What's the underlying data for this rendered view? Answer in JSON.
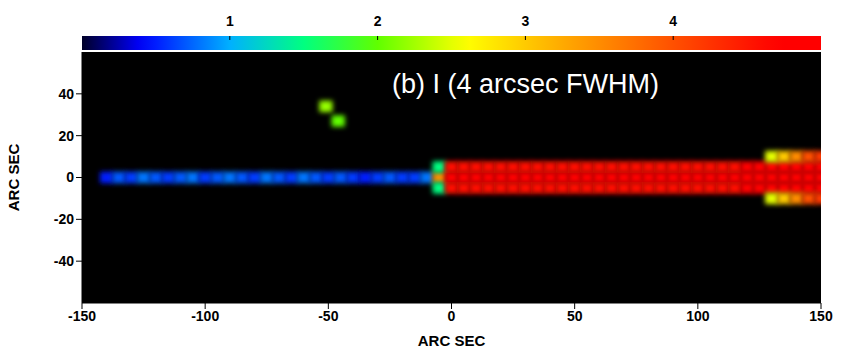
{
  "chart_data": {
    "type": "heatmap",
    "title": "(b) I (4 arcsec FWHM)",
    "x_label": "ARC SEC",
    "y_label": "ARC SEC",
    "xlim": [
      -150,
      150
    ],
    "ylim": [
      -60,
      60
    ],
    "xticks": [
      -150,
      -100,
      -50,
      0,
      50,
      100,
      150
    ],
    "yticks": [
      -40,
      -20,
      0,
      20,
      40
    ],
    "cell_size": [
      5,
      5
    ],
    "colorbar": {
      "range": [
        0,
        5
      ],
      "ticks": [
        1,
        2,
        3,
        4
      ]
    },
    "cells": [
      [
        -140,
        0,
        0.5
      ],
      [
        -135,
        0,
        0.7
      ],
      [
        -130,
        0,
        0.6
      ],
      [
        -125,
        0,
        0.8
      ],
      [
        -120,
        0,
        0.7
      ],
      [
        -115,
        0,
        0.6
      ],
      [
        -110,
        0,
        0.7
      ],
      [
        -105,
        0,
        0.8
      ],
      [
        -100,
        0,
        0.6
      ],
      [
        -95,
        0,
        0.7
      ],
      [
        -90,
        0,
        0.8
      ],
      [
        -85,
        0,
        0.7
      ],
      [
        -80,
        0,
        0.6
      ],
      [
        -75,
        0,
        0.8
      ],
      [
        -70,
        0,
        0.7
      ],
      [
        -65,
        0,
        0.6
      ],
      [
        -60,
        0,
        0.8
      ],
      [
        -55,
        0,
        0.7
      ],
      [
        -50,
        0,
        0.6
      ],
      [
        -45,
        0,
        0.7
      ],
      [
        -40,
        0,
        0.6
      ],
      [
        -35,
        0,
        0.5
      ],
      [
        -30,
        0,
        0.6
      ],
      [
        -25,
        0,
        0.7
      ],
      [
        -20,
        0,
        0.6
      ],
      [
        -15,
        0,
        0.6
      ],
      [
        -10,
        0,
        0.8
      ],
      [
        -5,
        0,
        3.5
      ],
      [
        -5,
        5,
        1.5
      ],
      [
        -5,
        -5,
        1.5
      ],
      [
        0,
        0,
        5
      ],
      [
        0,
        5,
        4.6
      ],
      [
        0,
        -5,
        4.6
      ],
      [
        5,
        0,
        5
      ],
      [
        10,
        0,
        5
      ],
      [
        15,
        0,
        5
      ],
      [
        20,
        0,
        5
      ],
      [
        25,
        0,
        5
      ],
      [
        30,
        0,
        5
      ],
      [
        35,
        0,
        5
      ],
      [
        40,
        0,
        5
      ],
      [
        45,
        0,
        5
      ],
      [
        50,
        0,
        5
      ],
      [
        55,
        0,
        5
      ],
      [
        60,
        0,
        5
      ],
      [
        65,
        0,
        5
      ],
      [
        70,
        0,
        5
      ],
      [
        75,
        0,
        5
      ],
      [
        80,
        0,
        5
      ],
      [
        85,
        0,
        5
      ],
      [
        90,
        0,
        5
      ],
      [
        95,
        0,
        5
      ],
      [
        100,
        0,
        5
      ],
      [
        105,
        0,
        5
      ],
      [
        110,
        0,
        5
      ],
      [
        115,
        0,
        5
      ],
      [
        120,
        0,
        5
      ],
      [
        125,
        0,
        5
      ],
      [
        130,
        0,
        5
      ],
      [
        135,
        0,
        5
      ],
      [
        140,
        0,
        5
      ],
      [
        145,
        0,
        5
      ],
      [
        150,
        0,
        5
      ],
      [
        5,
        5,
        4.6
      ],
      [
        10,
        5,
        4.6
      ],
      [
        15,
        5,
        4.6
      ],
      [
        20,
        5,
        4.6
      ],
      [
        25,
        5,
        4.6
      ],
      [
        30,
        5,
        4.6
      ],
      [
        35,
        5,
        4.6
      ],
      [
        40,
        5,
        4.6
      ],
      [
        45,
        5,
        4.6
      ],
      [
        50,
        5,
        4.6
      ],
      [
        55,
        5,
        4.6
      ],
      [
        60,
        5,
        4.6
      ],
      [
        65,
        5,
        4.6
      ],
      [
        70,
        5,
        4.6
      ],
      [
        75,
        5,
        4.6
      ],
      [
        80,
        5,
        4.6
      ],
      [
        85,
        5,
        4.6
      ],
      [
        90,
        5,
        4.6
      ],
      [
        95,
        5,
        4.6
      ],
      [
        100,
        5,
        4.6
      ],
      [
        105,
        5,
        4.6
      ],
      [
        110,
        5,
        4.6
      ],
      [
        115,
        5,
        4.6
      ],
      [
        120,
        5,
        4.8
      ],
      [
        125,
        5,
        4.8
      ],
      [
        130,
        5,
        4.8
      ],
      [
        135,
        5,
        4.8
      ],
      [
        140,
        5,
        4.8
      ],
      [
        145,
        5,
        4.8
      ],
      [
        150,
        5,
        4.8
      ],
      [
        5,
        -5,
        4.6
      ],
      [
        10,
        -5,
        4.6
      ],
      [
        15,
        -5,
        4.6
      ],
      [
        20,
        -5,
        4.6
      ],
      [
        25,
        -5,
        4.6
      ],
      [
        30,
        -5,
        4.6
      ],
      [
        35,
        -5,
        4.6
      ],
      [
        40,
        -5,
        4.6
      ],
      [
        45,
        -5,
        4.6
      ],
      [
        50,
        -5,
        4.6
      ],
      [
        55,
        -5,
        4.6
      ],
      [
        60,
        -5,
        4.6
      ],
      [
        65,
        -5,
        4.6
      ],
      [
        70,
        -5,
        4.6
      ],
      [
        75,
        -5,
        4.6
      ],
      [
        80,
        -5,
        4.6
      ],
      [
        85,
        -5,
        4.6
      ],
      [
        90,
        -5,
        4.6
      ],
      [
        95,
        -5,
        4.6
      ],
      [
        100,
        -5,
        4.6
      ],
      [
        105,
        -5,
        4.6
      ],
      [
        110,
        -5,
        4.6
      ],
      [
        115,
        -5,
        4.6
      ],
      [
        120,
        -5,
        4.8
      ],
      [
        125,
        -5,
        4.8
      ],
      [
        130,
        -5,
        4.8
      ],
      [
        135,
        -5,
        4.8
      ],
      [
        140,
        -5,
        4.8
      ],
      [
        145,
        -5,
        4.8
      ],
      [
        150,
        -5,
        4.8
      ],
      [
        130,
        10,
        2.5
      ],
      [
        135,
        10,
        3
      ],
      [
        140,
        10,
        3.5
      ],
      [
        145,
        10,
        4
      ],
      [
        150,
        10,
        4.2
      ],
      [
        130,
        -10,
        2.5
      ],
      [
        135,
        -10,
        3
      ],
      [
        140,
        -10,
        3.5
      ],
      [
        145,
        -10,
        4
      ],
      [
        150,
        -10,
        4.2
      ],
      [
        -51,
        34,
        2.2
      ],
      [
        -46,
        27,
        2.0
      ]
    ]
  }
}
